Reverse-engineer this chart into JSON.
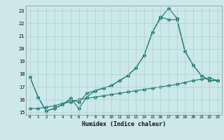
{
  "xlabel": "Humidex (Indice chaleur)",
  "bg_color": "#cce8ea",
  "grid_color": "#aacfd2",
  "line_color": "#1a7a6e",
  "xlim": [
    -0.5,
    23.5
  ],
  "ylim": [
    14.8,
    23.4
  ],
  "yticks": [
    15,
    16,
    17,
    18,
    19,
    20,
    21,
    22,
    23
  ],
  "xticks": [
    0,
    1,
    2,
    3,
    4,
    5,
    6,
    7,
    8,
    9,
    10,
    11,
    12,
    13,
    14,
    15,
    16,
    17,
    18,
    19,
    20,
    21,
    22,
    23
  ],
  "series1_x": [
    0,
    1,
    2,
    3,
    4,
    5,
    6,
    7,
    8,
    9,
    10,
    11,
    12,
    13,
    14,
    15,
    16,
    17,
    18,
    19,
    20,
    21,
    22,
    23
  ],
  "series1_y": [
    17.8,
    16.2,
    15.1,
    15.3,
    15.6,
    16.0,
    15.8,
    16.5,
    16.7,
    16.9,
    17.1,
    17.5,
    17.9,
    18.5,
    19.5,
    21.3,
    22.4,
    23.2,
    22.4,
    19.8,
    18.7,
    17.9,
    17.5,
    17.5
  ],
  "series2_x": [
    0,
    1,
    2,
    3,
    4,
    5,
    6,
    7,
    8,
    9,
    10,
    11,
    12,
    13,
    14,
    15,
    16,
    17,
    18,
    19,
    20,
    21,
    22,
    23
  ],
  "series2_y": [
    17.8,
    16.2,
    15.1,
    15.3,
    15.6,
    16.1,
    15.3,
    16.2,
    16.7,
    16.9,
    17.1,
    17.5,
    17.9,
    18.5,
    19.5,
    21.3,
    22.5,
    22.3,
    22.3,
    19.8,
    18.7,
    17.9,
    17.5,
    17.5
  ],
  "series3_x": [
    0,
    1,
    2,
    3,
    4,
    5,
    6,
    7,
    8,
    9,
    10,
    11,
    12,
    13,
    14,
    15,
    16,
    17,
    18,
    19,
    20,
    21,
    22,
    23
  ],
  "series3_y": [
    15.3,
    15.3,
    15.4,
    15.5,
    15.7,
    15.8,
    16.0,
    16.1,
    16.2,
    16.3,
    16.4,
    16.5,
    16.6,
    16.7,
    16.8,
    16.9,
    17.0,
    17.1,
    17.2,
    17.35,
    17.5,
    17.6,
    17.7,
    17.5
  ]
}
